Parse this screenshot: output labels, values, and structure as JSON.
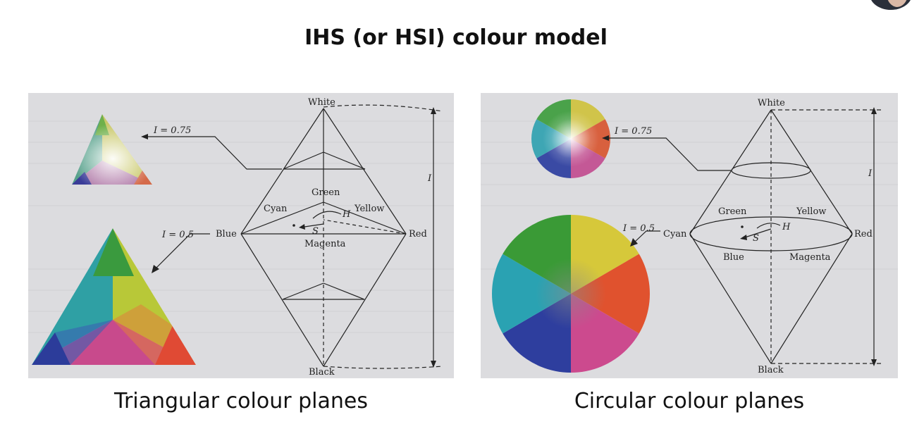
{
  "slide": {
    "title": "IHS (or HSI) colour model"
  },
  "left_figure": {
    "caption": "Triangular colour planes",
    "label_white": "White",
    "label_black": "Black",
    "label_green": "Green",
    "label_cyan": "Cyan",
    "label_yellow": "Yellow",
    "label_blue": "Blue",
    "label_red": "Red",
    "label_magenta": "Magenta",
    "label_i075": "I = 0.75",
    "label_i05": "I = 0.5",
    "label_h": "H",
    "label_s": "S",
    "label_i": "I"
  },
  "right_figure": {
    "caption": "Circular colour planes",
    "label_white": "White",
    "label_black": "Black",
    "label_green": "Green",
    "label_yellow": "Yellow",
    "label_cyan": "Cyan",
    "label_red": "Red",
    "label_blue": "Blue",
    "label_magenta": "Magenta",
    "label_i075": "I = 0.75",
    "label_i05": "I = 0.5",
    "label_h": "H",
    "label_s": "S",
    "label_i": "I"
  },
  "colors": {
    "panel_bg": "#dcdcdf",
    "line": "#222222",
    "green": "#3a9a2e",
    "yellow": "#e0d02a",
    "red": "#e04a2a",
    "magenta": "#c4449c",
    "blue": "#2a3a9c",
    "cyan": "#2aa6b4"
  },
  "icons": {
    "presenter": "presenter-avatar"
  }
}
